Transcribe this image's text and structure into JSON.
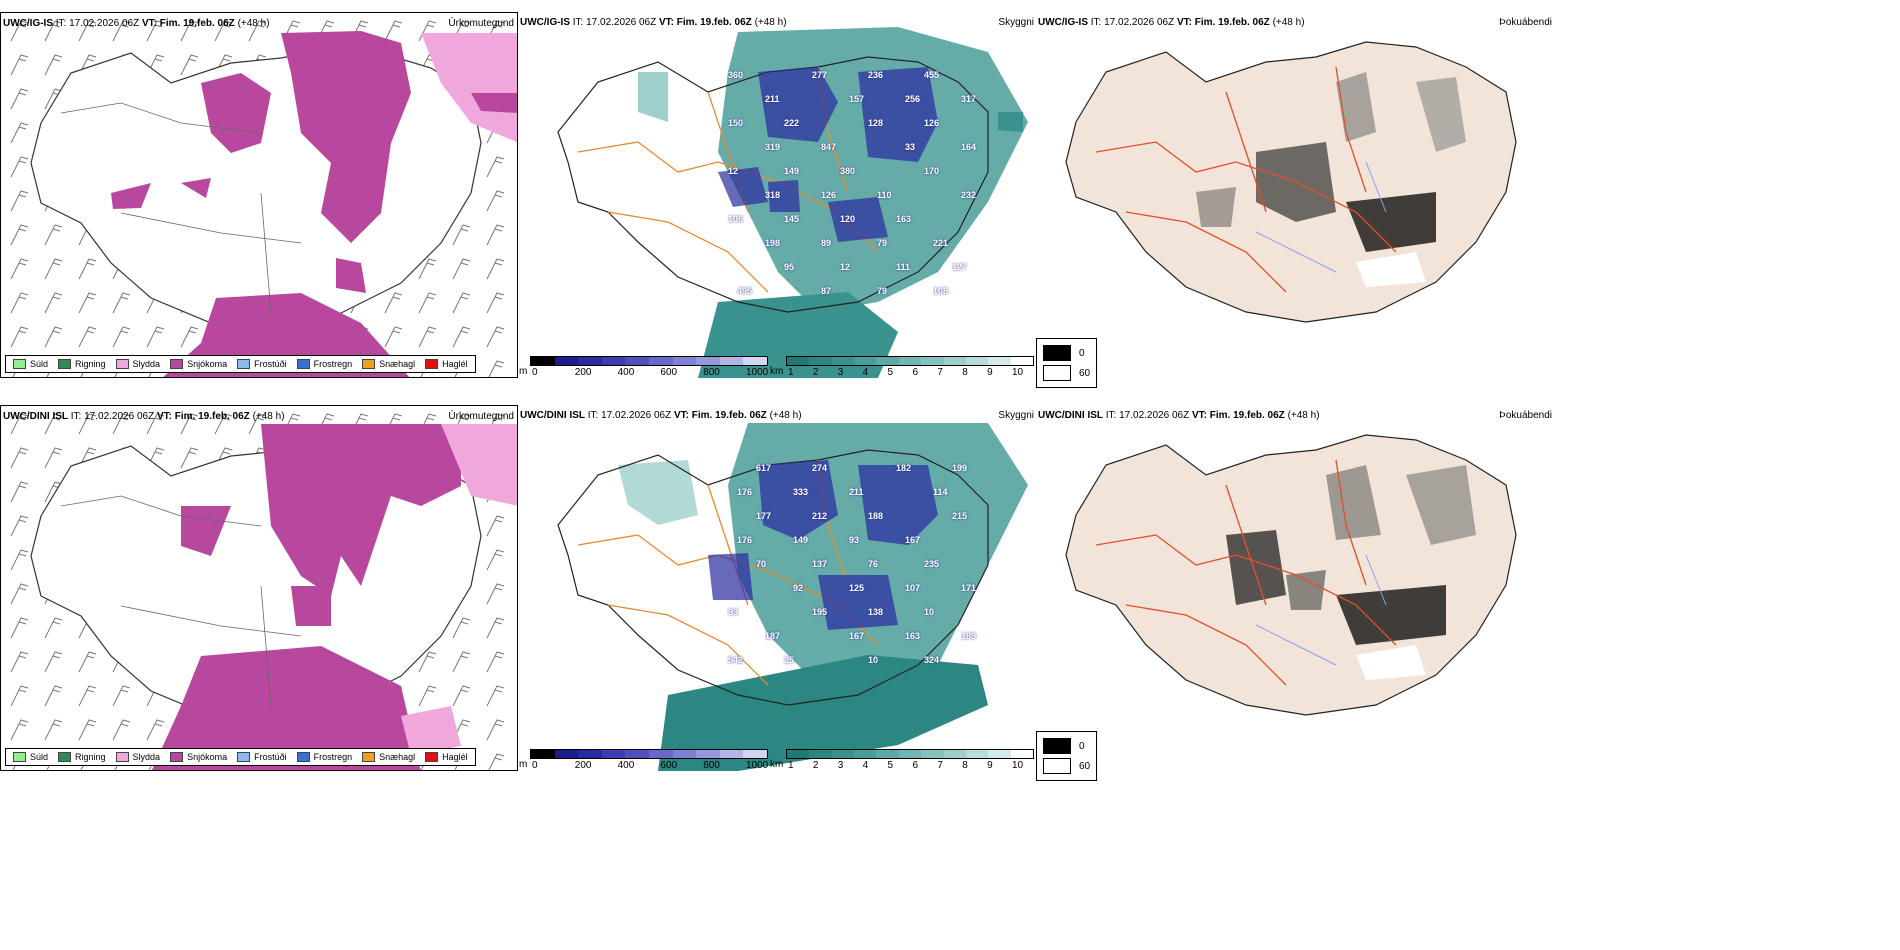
{
  "panels": [
    {
      "model": "UWC/IG-IS",
      "it_label": "IT:",
      "it": "17.02.2026 06Z",
      "vt_label": "VT:",
      "vt": "Fim. 19.feb. 06Z",
      "lead": "(+48 h)",
      "title": "Úrkomutegund"
    },
    {
      "model": "UWC/IG-IS",
      "it_label": "IT:",
      "it": "17.02.2026 06Z",
      "vt_label": "VT:",
      "vt": "Fim. 19.feb. 06Z",
      "lead": "(+48 h)",
      "title": "Skyggni"
    },
    {
      "model": "UWC/IG-IS",
      "it_label": "IT:",
      "it": "17.02.2026 06Z",
      "vt_label": "VT:",
      "vt": "Fim. 19.feb. 06Z",
      "lead": "(+48 h)",
      "title": "Þokuábendi"
    },
    {
      "model": "UWC/DINI ISL",
      "it_label": "IT:",
      "it": "17.02.2026 06Z",
      "vt_label": "VT:",
      "vt": "Fim. 19.feb. 06Z",
      "lead": "(+48 h)",
      "title": "Úrkomutegund"
    },
    {
      "model": "UWC/DINI ISL",
      "it_label": "IT:",
      "it": "17.02.2026 06Z",
      "vt_label": "VT:",
      "vt": "Fim. 19.feb. 06Z",
      "lead": "(+48 h)",
      "title": "Skyggni"
    },
    {
      "model": "UWC/DINI ISL",
      "it_label": "IT:",
      "it": "17.02.2026 06Z",
      "vt_label": "VT:",
      "vt": "Fim. 19.feb. 06Z",
      "lead": "(+48 h)",
      "title": "Þokuábendi"
    }
  ],
  "precip_legend": [
    {
      "label": "Súld",
      "color": "#90ee90"
    },
    {
      "label": "Rigning",
      "color": "#2e8b57"
    },
    {
      "label": "Slydda",
      "color": "#f0a8dc"
    },
    {
      "label": "Snjókoma",
      "color": "#b8489e"
    },
    {
      "label": "Frostúði",
      "color": "#8cb8f0"
    },
    {
      "label": "Frostregn",
      "color": "#3a6fd0"
    },
    {
      "label": "Snæhagl",
      "color": "#f0a020"
    },
    {
      "label": "Haglél",
      "color": "#e01010"
    }
  ],
  "ceiling_bar": {
    "unit": "m",
    "ticks": [
      "0",
      "200",
      "400",
      "600",
      "800",
      "1000"
    ],
    "colors": [
      "#000000",
      "#1c1c8c",
      "#2a2aa0",
      "#3c3cb0",
      "#5050bc",
      "#6868c8",
      "#8080d4",
      "#9898dc",
      "#b4b4e8",
      "#d4d4f4"
    ]
  },
  "visibility_bar": {
    "unit": "km",
    "ticks": [
      "1",
      "2",
      "3",
      "4",
      "5",
      "6",
      "7",
      "8",
      "9",
      "10"
    ],
    "colors": [
      "#1f7a76",
      "#2c8682",
      "#3a928e",
      "#4a9e9a",
      "#5caaa6",
      "#70b6b2",
      "#86c2be",
      "#9ecfcb",
      "#b8dcd9",
      "#d4eae8",
      "#ffffff"
    ]
  },
  "fog_key": [
    {
      "value": "0",
      "color": "#000000"
    },
    {
      "value": "60",
      "color": "#ffffff"
    }
  ],
  "ceiling_labels_top": [
    "360",
    "455",
    "236",
    "277",
    "211",
    "317",
    "256",
    "157",
    "222",
    "150",
    "126",
    "128",
    "847",
    "319",
    "164",
    "33",
    "380",
    "149",
    "12",
    "170",
    "110",
    "126",
    "318",
    "232",
    "163",
    "120",
    "145",
    "106",
    "221",
    "79",
    "89",
    "198",
    "127",
    "111",
    "12",
    "95",
    "495",
    "108",
    "79",
    "87"
  ],
  "ceiling_labels_bottom": [
    "274",
    "617",
    "199",
    "182",
    "211",
    "333",
    "176",
    "114",
    "188",
    "212",
    "177",
    "215",
    "167",
    "93",
    "149",
    "176",
    "235",
    "76",
    "137",
    "70",
    "171",
    "107",
    "125",
    "92",
    "93",
    "10",
    "138",
    "195",
    "187",
    "189",
    "163",
    "167",
    "25",
    "542",
    "324",
    "10"
  ]
}
